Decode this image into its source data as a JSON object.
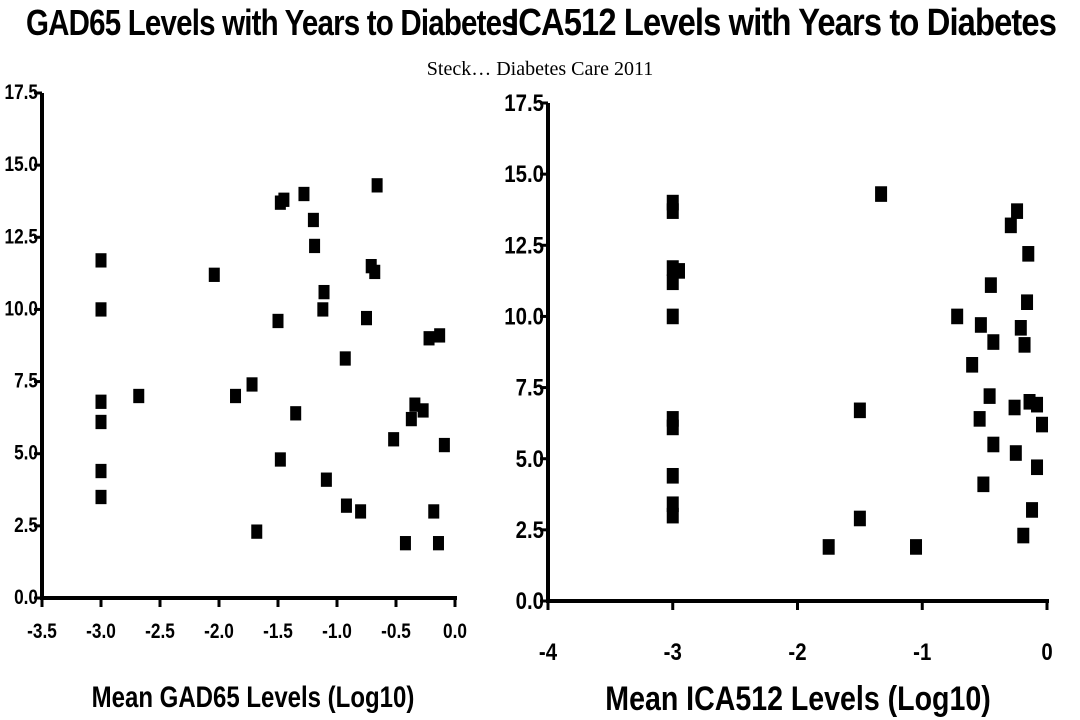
{
  "citation": "Steck… Diabetes Care 2011",
  "chart_data": [
    {
      "type": "scatter",
      "title": "GAD65 Levels with Years to Diabetes",
      "xlabel": "Mean GAD65 Levels (Log10)",
      "ylabel": "",
      "xlim": [
        -3.5,
        0.0
      ],
      "ylim": [
        0.0,
        17.5
      ],
      "x_ticks": [
        -3.5,
        -3.0,
        -2.5,
        -2.0,
        -1.5,
        -1.0,
        -0.5,
        0.0
      ],
      "x_tick_labels": [
        "-3.5",
        "-3.0",
        "-2.5",
        "-2.0",
        "-1.5",
        "-1.0",
        "-0.5",
        "0.0"
      ],
      "y_ticks": [
        0.0,
        2.5,
        5.0,
        7.5,
        10.0,
        12.5,
        15.0,
        17.5
      ],
      "y_tick_labels": [
        "0.0",
        "2.5",
        "5.0",
        "7.5",
        "10.0",
        "12.5",
        "15.0",
        "17.5"
      ],
      "grid": false,
      "marker": "square",
      "color": "#000000",
      "points": [
        {
          "x": -3.0,
          "y": 11.7
        },
        {
          "x": -3.0,
          "y": 10.0
        },
        {
          "x": -3.0,
          "y": 6.8
        },
        {
          "x": -3.0,
          "y": 6.1
        },
        {
          "x": -3.0,
          "y": 4.4
        },
        {
          "x": -3.0,
          "y": 3.5
        },
        {
          "x": -2.68,
          "y": 7.0
        },
        {
          "x": -2.04,
          "y": 11.2
        },
        {
          "x": -1.86,
          "y": 7.0
        },
        {
          "x": -1.72,
          "y": 7.4
        },
        {
          "x": -1.68,
          "y": 2.3
        },
        {
          "x": -1.5,
          "y": 9.6
        },
        {
          "x": -1.48,
          "y": 13.7
        },
        {
          "x": -1.45,
          "y": 13.8
        },
        {
          "x": -1.48,
          "y": 4.8
        },
        {
          "x": -1.35,
          "y": 6.4
        },
        {
          "x": -1.28,
          "y": 14.0
        },
        {
          "x": -1.2,
          "y": 13.1
        },
        {
          "x": -1.19,
          "y": 12.2
        },
        {
          "x": -1.11,
          "y": 10.6
        },
        {
          "x": -1.12,
          "y": 10.0
        },
        {
          "x": -1.09,
          "y": 4.1
        },
        {
          "x": -0.93,
          "y": 8.3
        },
        {
          "x": -0.92,
          "y": 3.2
        },
        {
          "x": -0.8,
          "y": 3.0
        },
        {
          "x": -0.75,
          "y": 9.7
        },
        {
          "x": -0.71,
          "y": 11.5
        },
        {
          "x": -0.68,
          "y": 11.3
        },
        {
          "x": -0.66,
          "y": 14.3
        },
        {
          "x": -0.52,
          "y": 5.5
        },
        {
          "x": -0.42,
          "y": 1.9
        },
        {
          "x": -0.37,
          "y": 6.2
        },
        {
          "x": -0.34,
          "y": 6.7
        },
        {
          "x": -0.27,
          "y": 6.5
        },
        {
          "x": -0.22,
          "y": 9.0
        },
        {
          "x": -0.18,
          "y": 3.0
        },
        {
          "x": -0.13,
          "y": 9.1
        },
        {
          "x": -0.14,
          "y": 1.9
        },
        {
          "x": -0.09,
          "y": 5.3
        }
      ]
    },
    {
      "type": "scatter",
      "title": "ICA512 Levels with Years to Diabetes",
      "xlabel": "Mean ICA512 Levels (Log10)",
      "ylabel": "",
      "xlim": [
        -4,
        0
      ],
      "ylim": [
        0.0,
        17.5
      ],
      "x_ticks": [
        -4,
        -3,
        -2,
        -1,
        0
      ],
      "x_tick_labels": [
        "-4",
        "-3",
        "-2",
        "-1",
        "0"
      ],
      "y_ticks": [
        0.0,
        2.5,
        5.0,
        7.5,
        10.0,
        12.5,
        15.0,
        17.5
      ],
      "y_tick_labels": [
        "0.0",
        "2.5",
        "5.0",
        "7.5",
        "10.0",
        "12.5",
        "15.0",
        "17.5"
      ],
      "grid": false,
      "marker": "square",
      "color": "#000000",
      "points": [
        {
          "x": -3.0,
          "y": 14.0
        },
        {
          "x": -3.0,
          "y": 13.7
        },
        {
          "x": -3.0,
          "y": 11.7
        },
        {
          "x": -2.95,
          "y": 11.6
        },
        {
          "x": -3.0,
          "y": 11.2
        },
        {
          "x": -3.0,
          "y": 10.0
        },
        {
          "x": -3.0,
          "y": 6.4
        },
        {
          "x": -3.0,
          "y": 6.1
        },
        {
          "x": -3.0,
          "y": 4.4
        },
        {
          "x": -3.0,
          "y": 3.4
        },
        {
          "x": -3.0,
          "y": 3.0
        },
        {
          "x": -1.33,
          "y": 14.3
        },
        {
          "x": -1.5,
          "y": 6.7
        },
        {
          "x": -1.5,
          "y": 2.9
        },
        {
          "x": -1.75,
          "y": 1.9
        },
        {
          "x": -1.05,
          "y": 1.9
        },
        {
          "x": -0.72,
          "y": 10.0
        },
        {
          "x": -0.6,
          "y": 8.3
        },
        {
          "x": -0.53,
          "y": 9.7
        },
        {
          "x": -0.54,
          "y": 6.4
        },
        {
          "x": -0.51,
          "y": 4.1
        },
        {
          "x": -0.46,
          "y": 7.2
        },
        {
          "x": -0.45,
          "y": 11.1
        },
        {
          "x": -0.43,
          "y": 9.1
        },
        {
          "x": -0.43,
          "y": 5.5
        },
        {
          "x": -0.29,
          "y": 13.2
        },
        {
          "x": -0.26,
          "y": 6.8
        },
        {
          "x": -0.25,
          "y": 5.2
        },
        {
          "x": -0.24,
          "y": 13.7
        },
        {
          "x": -0.21,
          "y": 9.6
        },
        {
          "x": -0.18,
          "y": 9.0
        },
        {
          "x": -0.19,
          "y": 2.3
        },
        {
          "x": -0.16,
          "y": 10.5
        },
        {
          "x": -0.15,
          "y": 12.2
        },
        {
          "x": -0.14,
          "y": 7.0
        },
        {
          "x": -0.12,
          "y": 3.2
        },
        {
          "x": -0.08,
          "y": 4.7
        },
        {
          "x": -0.08,
          "y": 6.9
        },
        {
          "x": -0.04,
          "y": 6.2
        }
      ]
    }
  ]
}
